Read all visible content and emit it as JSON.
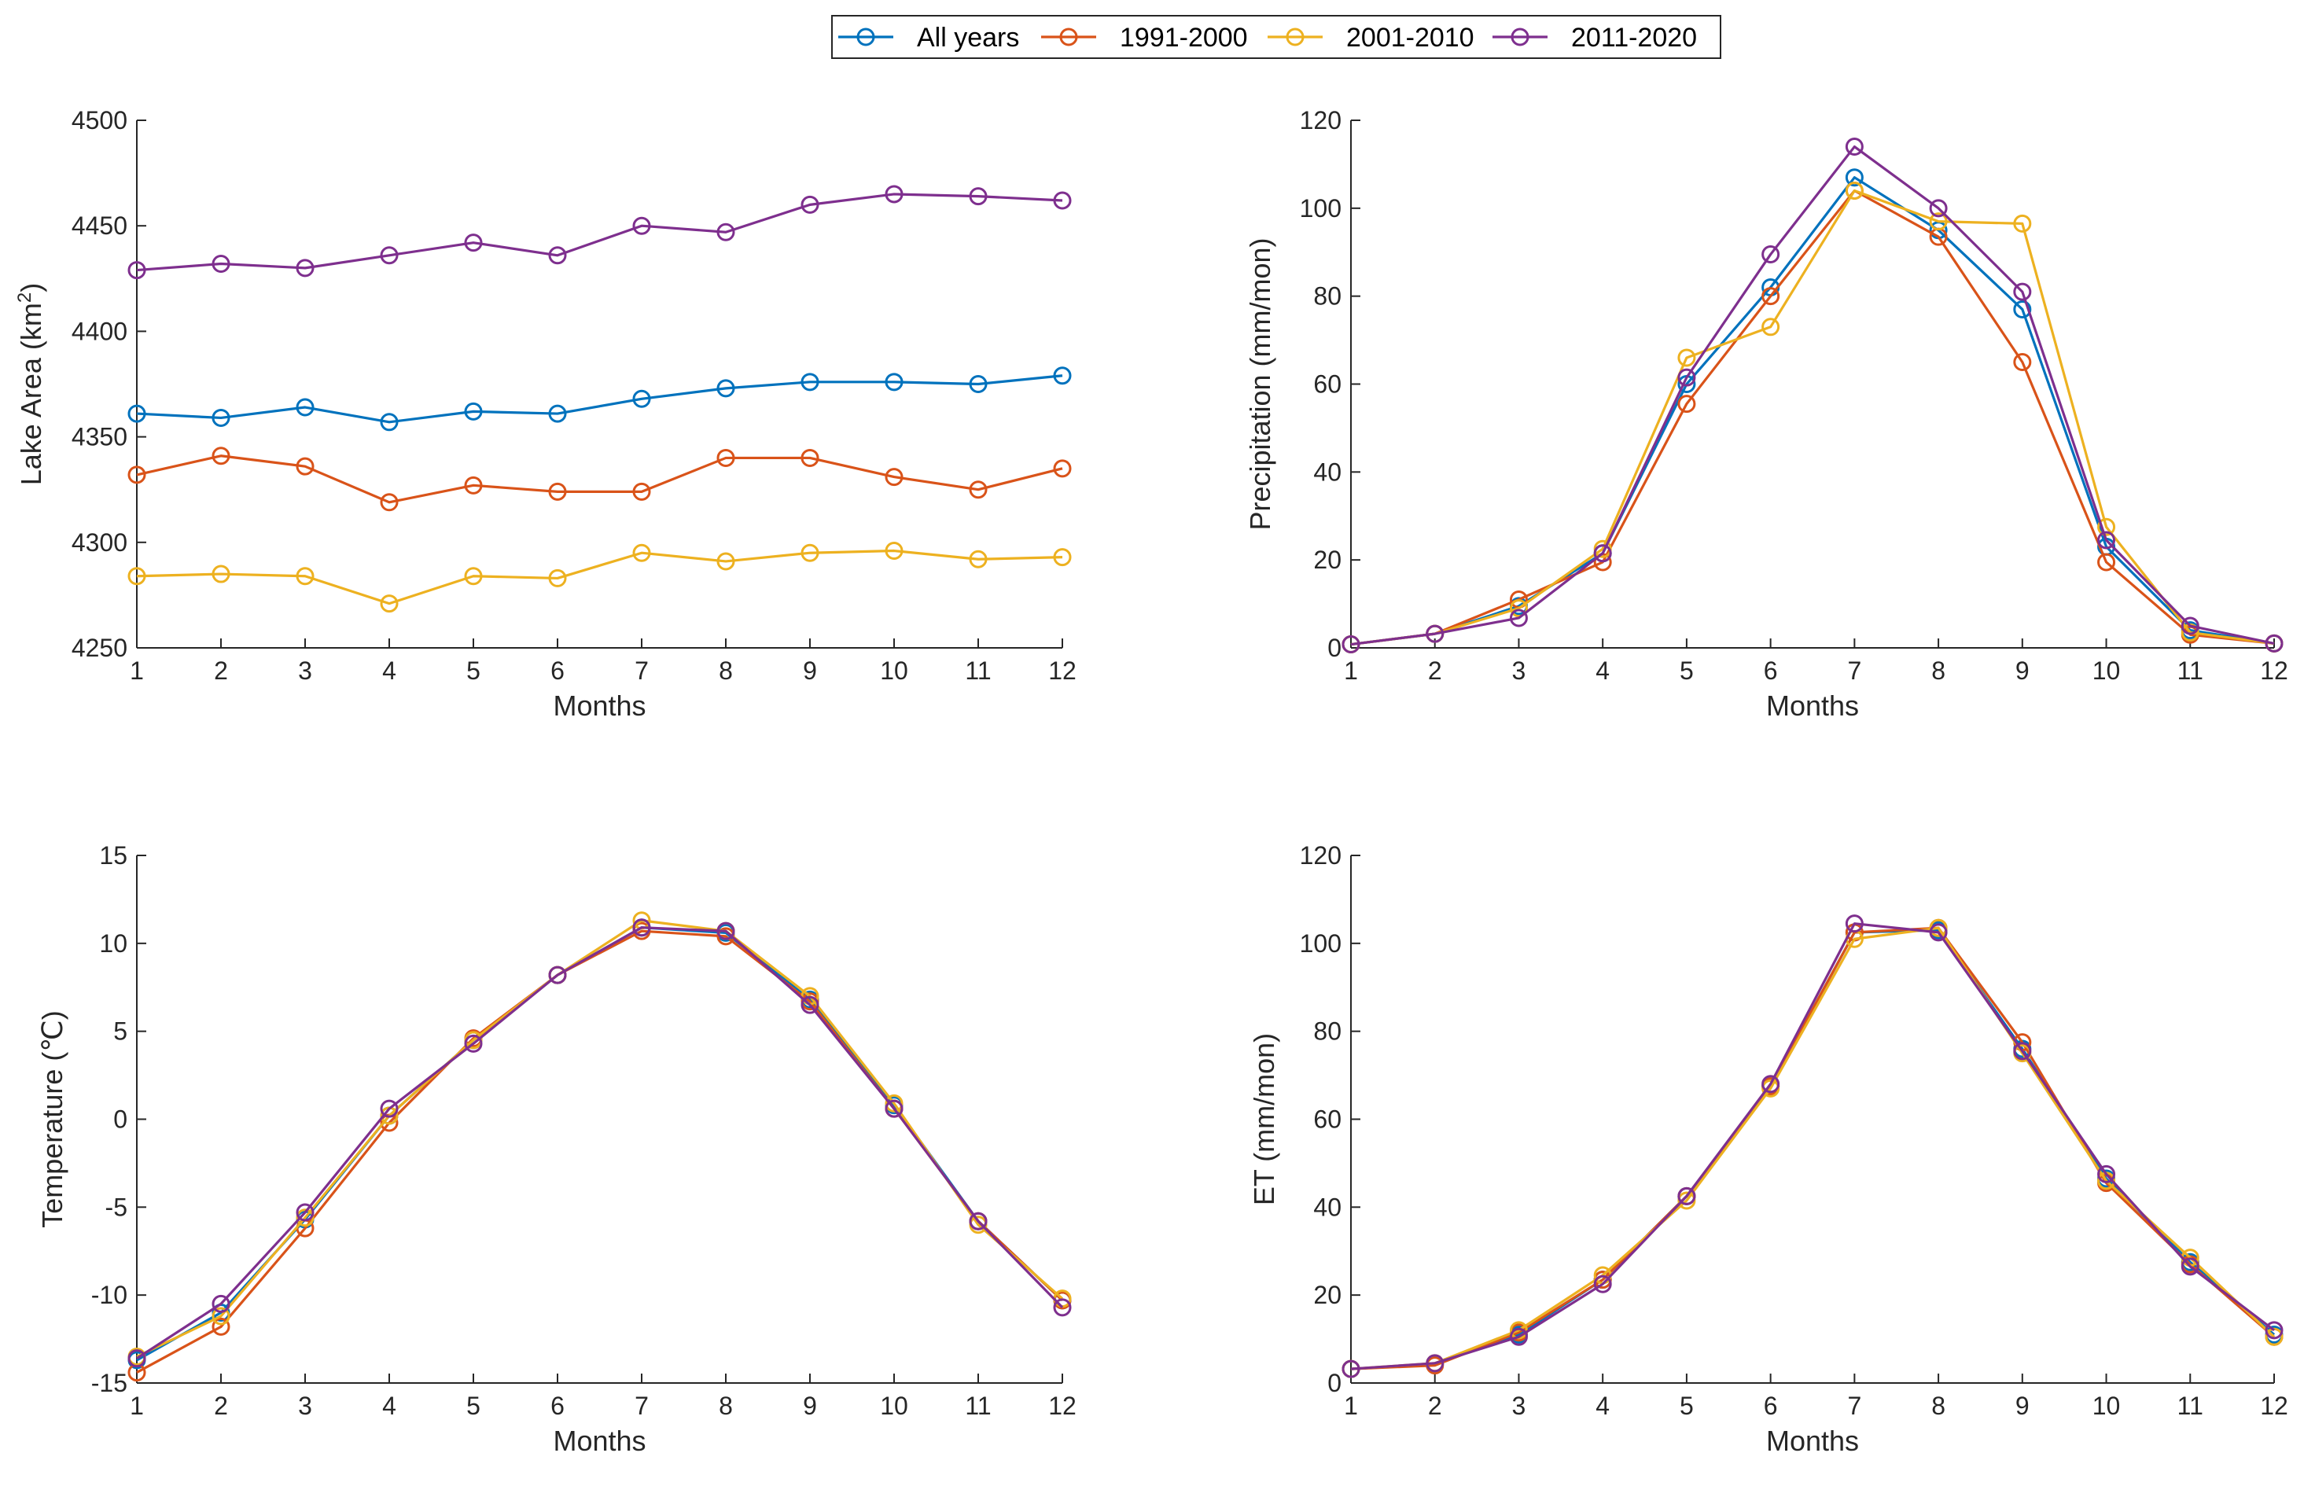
{
  "legend": {
    "entries": [
      "All years",
      "1991-2000",
      "2001-2010",
      "2011-2020"
    ]
  },
  "colors": {
    "All years": "#0072BD",
    "1991-2000": "#D95319",
    "2001-2010": "#EDB120",
    "2011-2020": "#7E2F8E"
  },
  "chart_data": [
    {
      "type": "line",
      "name": "lake-area",
      "title": "",
      "xlabel": "Months",
      "ylabel_main": "Lake Area (km",
      "ylabel_sup": "2",
      "ylabel_end": ")",
      "x": [
        1,
        2,
        3,
        4,
        5,
        6,
        7,
        8,
        9,
        10,
        11,
        12
      ],
      "xlim": [
        1,
        12
      ],
      "ylim": [
        4250,
        4500
      ],
      "yticks": [
        4250,
        4300,
        4350,
        4400,
        4450,
        4500
      ],
      "xtick_labels": [
        "1",
        "2",
        "3",
        "4",
        "5",
        "6",
        "7",
        "8",
        "9",
        "10",
        "11",
        "12"
      ],
      "ytick_labels": [
        "4250",
        "4300",
        "4350",
        "4400",
        "4450",
        "4500"
      ],
      "series": [
        {
          "name": "All years",
          "values": [
            4361,
            4359,
            4364,
            4357,
            4362,
            4361,
            4368,
            4373,
            4376,
            4376,
            4375,
            4379
          ]
        },
        {
          "name": "1991-2000",
          "values": [
            4332,
            4341,
            4336,
            4319,
            4327,
            4324,
            4324,
            4340,
            4340,
            4331,
            4325,
            4335
          ]
        },
        {
          "name": "2001-2010",
          "values": [
            4284,
            4285,
            4284,
            4271,
            4284,
            4283,
            4295,
            4291,
            4295,
            4296,
            4292,
            4293
          ]
        },
        {
          "name": "2011-2020",
          "values": [
            4429,
            4432,
            4430,
            4436,
            4442,
            4436,
            4450,
            4447,
            4460,
            4465,
            4464,
            4462
          ]
        }
      ]
    },
    {
      "type": "line",
      "name": "precipitation",
      "title": "",
      "xlabel": "Months",
      "ylabel_main": "Precipitation (mm/mon)",
      "ylabel_sup": "",
      "ylabel_end": "",
      "x": [
        1,
        2,
        3,
        4,
        5,
        6,
        7,
        8,
        9,
        10,
        11,
        12
      ],
      "xlim": [
        1,
        12
      ],
      "ylim": [
        0,
        120
      ],
      "yticks": [
        0,
        20,
        40,
        60,
        80,
        100,
        120
      ],
      "xtick_labels": [
        "1",
        "2",
        "3",
        "4",
        "5",
        "6",
        "7",
        "8",
        "9",
        "10",
        "11",
        "12"
      ],
      "ytick_labels": [
        "0",
        "20",
        "40",
        "60",
        "80",
        "100",
        "120"
      ],
      "series": [
        {
          "name": "All years",
          "values": [
            0.8,
            3.2,
            9.5,
            21.5,
            60,
            82,
            107,
            95,
            77,
            23,
            4,
            1
          ]
        },
        {
          "name": "1991-2000",
          "values": [
            0.8,
            3.2,
            11,
            19.5,
            55.5,
            80,
            104,
            93.5,
            65,
            19.5,
            3,
            1
          ]
        },
        {
          "name": "2001-2010",
          "values": [
            0.8,
            3.2,
            9,
            22.5,
            66,
            73,
            104,
            97,
            96.5,
            27.5,
            3.5,
            1
          ]
        },
        {
          "name": "2011-2020",
          "values": [
            0.8,
            3.2,
            6.8,
            21.5,
            61.5,
            89.5,
            114,
            100,
            81,
            24.5,
            5,
            1
          ]
        }
      ]
    },
    {
      "type": "line",
      "name": "temperature",
      "title": "",
      "xlabel": "Months",
      "ylabel_main": "Temperature (℃)",
      "ylabel_sup": "",
      "ylabel_end": "",
      "x": [
        1,
        2,
        3,
        4,
        5,
        6,
        7,
        8,
        9,
        10,
        11,
        12
      ],
      "xlim": [
        1,
        12
      ],
      "ylim": [
        -15,
        15
      ],
      "yticks": [
        -15,
        -10,
        -5,
        0,
        5,
        10,
        15
      ],
      "xtick_labels": [
        "1",
        "2",
        "3",
        "4",
        "5",
        "6",
        "7",
        "8",
        "9",
        "10",
        "11",
        "12"
      ],
      "ytick_labels": [
        "-15",
        "-10",
        "-5",
        "0",
        "5",
        "10",
        "15"
      ],
      "series": [
        {
          "name": "All years",
          "values": [
            -13.7,
            -11,
            -5.7,
            0.2,
            4.5,
            8.2,
            10.9,
            10.6,
            6.8,
            0.8,
            -5.8,
            -10.3
          ]
        },
        {
          "name": "1991-2000",
          "values": [
            -14.4,
            -11.8,
            -6.2,
            -0.2,
            4.6,
            8.2,
            10.7,
            10.4,
            6.7,
            0.6,
            -5.8,
            -10.3
          ]
        },
        {
          "name": "2001-2010",
          "values": [
            -13.5,
            -11.2,
            -5.6,
            0.2,
            4.5,
            8.2,
            11.3,
            10.7,
            7,
            0.9,
            -6,
            -10.2
          ]
        },
        {
          "name": "2011-2020",
          "values": [
            -13.6,
            -10.5,
            -5.3,
            0.6,
            4.3,
            8.2,
            10.9,
            10.7,
            6.5,
            0.6,
            -5.8,
            -10.7
          ]
        }
      ]
    },
    {
      "type": "line",
      "name": "et",
      "title": "",
      "xlabel": "Months",
      "ylabel_main": "ET (mm/mon)",
      "ylabel_sup": "",
      "ylabel_end": "",
      "x": [
        1,
        2,
        3,
        4,
        5,
        6,
        7,
        8,
        9,
        10,
        11,
        12
      ],
      "xlim": [
        1,
        12
      ],
      "ylim": [
        0,
        120
      ],
      "yticks": [
        0,
        20,
        40,
        60,
        80,
        100,
        120
      ],
      "xtick_labels": [
        "1",
        "2",
        "3",
        "4",
        "5",
        "6",
        "7",
        "8",
        "9",
        "10",
        "11",
        "12"
      ],
      "ytick_labels": [
        "0",
        "20",
        "40",
        "60",
        "80",
        "100",
        "120"
      ],
      "series": [
        {
          "name": "All years",
          "values": [
            3.2,
            4.3,
            11,
            23.5,
            42.5,
            67.5,
            102.5,
            103,
            76,
            46.5,
            27.5,
            11
          ]
        },
        {
          "name": "1991-2000",
          "values": [
            3.2,
            4,
            11.5,
            23.5,
            42.5,
            67.5,
            102.5,
            103.5,
            77.5,
            45.5,
            27,
            10.5
          ]
        },
        {
          "name": "2001-2010",
          "values": [
            3.2,
            4.5,
            12,
            24.5,
            41.5,
            67,
            101,
            103.5,
            75,
            46,
            28.5,
            10.5
          ]
        },
        {
          "name": "2011-2020",
          "values": [
            3.2,
            4.5,
            10.5,
            22.5,
            42.5,
            68,
            104.5,
            102.5,
            75.5,
            47.5,
            26.5,
            12
          ]
        }
      ]
    }
  ]
}
